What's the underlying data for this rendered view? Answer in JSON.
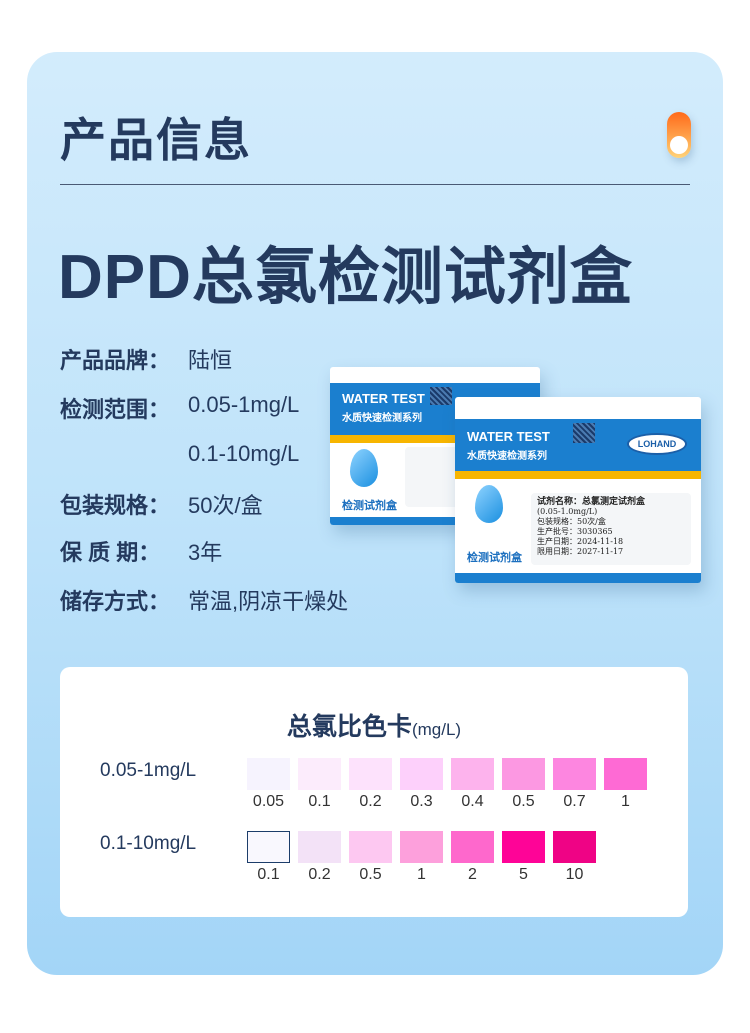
{
  "header": {
    "title": "产品信息"
  },
  "product": {
    "title": "DPD总氯检测试剂盒"
  },
  "specs": [
    {
      "label": "产品品牌：",
      "value": "陆恒"
    },
    {
      "label": "检测范围：",
      "value": "0.05-1mg/L"
    },
    {
      "label": "",
      "value": "0.1-10mg/L"
    },
    {
      "label": "包装规格：",
      "value": "50次/盒"
    },
    {
      "label": "保 质 期：",
      "value": "3年"
    },
    {
      "label": "储存方式：",
      "value": "常温,阴凉干燥处"
    }
  ],
  "box": {
    "brand_en": "WATER TEST",
    "series": "水质快速检测系列",
    "kit": "检测试剂盒",
    "logo": "LOHAND",
    "label": {
      "name": "试剂名称：总氯测定试剂盒",
      "range": "(0.05-1.0mg/L)",
      "pack": "包装规格：50次/盒",
      "batch": "生产批号：3030365",
      "date": "生产日期：2024-11-18",
      "expiry": "限用日期：2027-11-17"
    }
  },
  "color_card": {
    "title": "总氯比色卡",
    "unit": "(mg/L)",
    "rows": [
      {
        "label": "0.05-1mg/L",
        "swatches": [
          {
            "v": "0.05",
            "c": "#f6f3fe"
          },
          {
            "v": "0.1",
            "c": "#fcecfc"
          },
          {
            "v": "0.2",
            "c": "#fde2fc"
          },
          {
            "v": "0.3",
            "c": "#fdd0fb"
          },
          {
            "v": "0.4",
            "c": "#fdb3ed"
          },
          {
            "v": "0.5",
            "c": "#fc98e2"
          },
          {
            "v": "0.7",
            "c": "#fd86e0"
          },
          {
            "v": "1",
            "c": "#fe6ad4"
          }
        ]
      },
      {
        "label": "0.1-10mg/L",
        "swatches": [
          {
            "v": "0.1",
            "c": "#f9f8fe",
            "border": "#1c3d6a"
          },
          {
            "v": "0.2",
            "c": "#f3e2f7"
          },
          {
            "v": "0.5",
            "c": "#fdc8f1"
          },
          {
            "v": "1",
            "c": "#fda0dc"
          },
          {
            "v": "2",
            "c": "#fe68cc"
          },
          {
            "v": "5",
            "c": "#fe0497"
          },
          {
            "v": "10",
            "c": "#ef0385"
          }
        ]
      }
    ]
  }
}
